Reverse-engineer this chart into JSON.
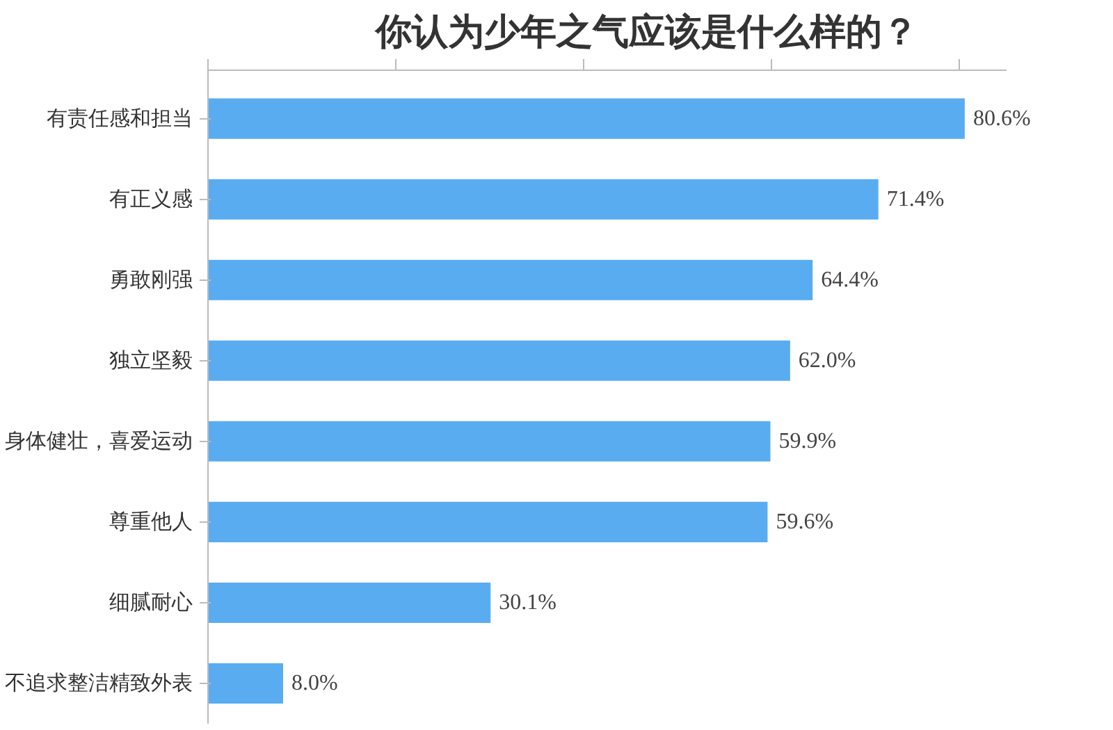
{
  "chart_data": {
    "type": "bar",
    "orientation": "horizontal",
    "title": "你认为少年之气应该是什么样的？",
    "categories": [
      "有责任感和担当",
      "有正义感",
      "勇敢刚强",
      "独立坚毅",
      "身体健壮，喜爱运动",
      "尊重他人",
      "细腻耐心",
      "不追求整洁精致外表"
    ],
    "values": [
      80.6,
      71.4,
      64.4,
      62.0,
      59.9,
      59.6,
      30.1,
      8.0
    ],
    "value_labels": [
      "80.6%",
      "71.4%",
      "64.4%",
      "62.0%",
      "59.9%",
      "59.6%",
      "30.1%",
      "8.0%"
    ],
    "color": "#5aacf0",
    "xlim": [
      0,
      85
    ],
    "xticks": [
      {
        "value": 0,
        "label": null
      },
      {
        "value": 20,
        "label": null
      },
      {
        "value": 40,
        "label": null
      },
      {
        "value": 60,
        "label": null
      },
      {
        "value": 80,
        "label": null
      }
    ],
    "tick_labels": "y",
    "grid": false
  }
}
